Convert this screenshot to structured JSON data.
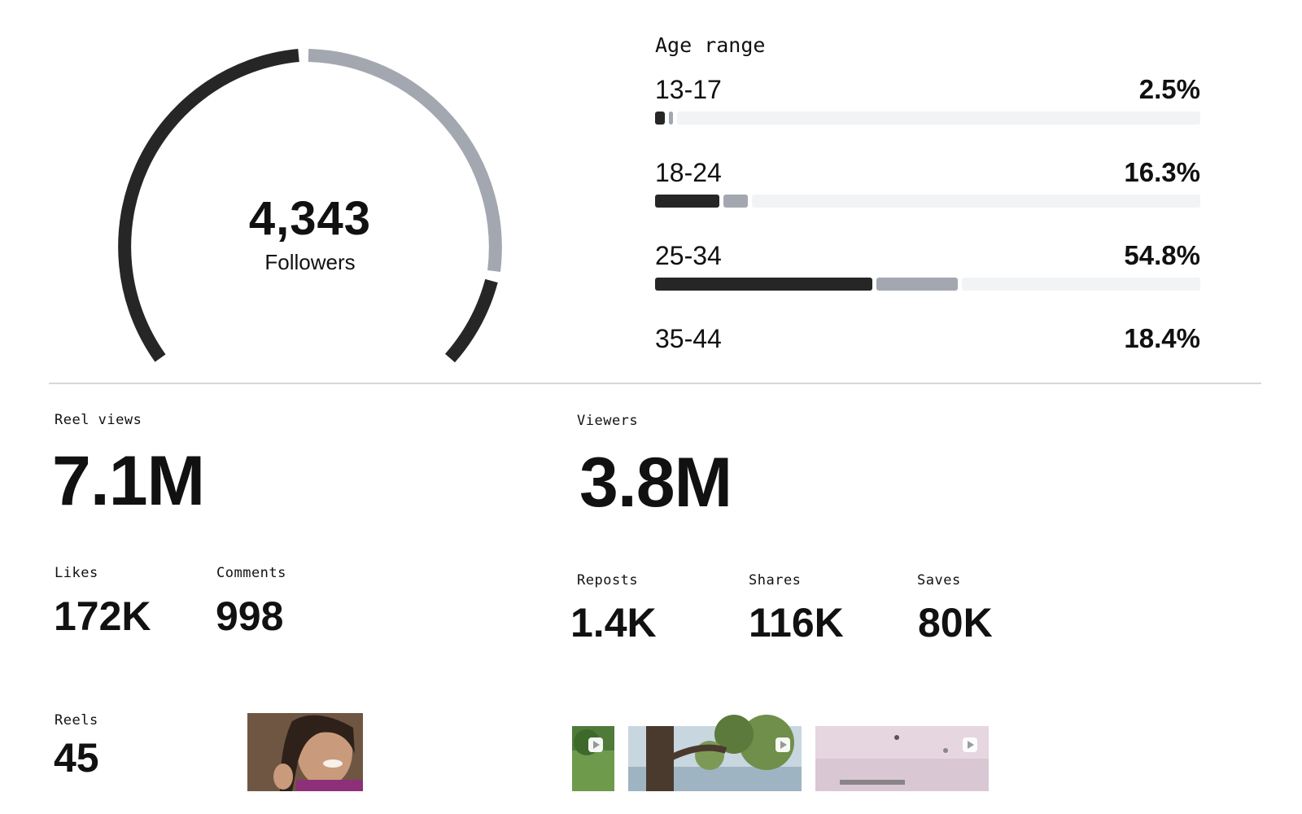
{
  "followers": {
    "count": "4,343",
    "label": "Followers",
    "ring_colors": {
      "dark": "#262626",
      "grey": "#a3a7b0"
    }
  },
  "age_range": {
    "title": "Age range",
    "rows": [
      {
        "label": "13-17",
        "value": "2.5%",
        "dark_fraction": 0.018,
        "grey_fraction": 0.007
      },
      {
        "label": "18-24",
        "value": "16.3%",
        "dark_fraction": 0.118,
        "grey_fraction": 0.045
      },
      {
        "label": "25-34",
        "value": "54.8%",
        "dark_fraction": 0.398,
        "grey_fraction": 0.15
      },
      {
        "label": "35-44",
        "value": "18.4%"
      }
    ]
  },
  "metrics": {
    "reel_views": {
      "label": "Reel views",
      "value": "7.1M"
    },
    "viewers": {
      "label": "Viewers",
      "value": "3.8M"
    },
    "likes": {
      "label": "Likes",
      "value": "172K"
    },
    "comments": {
      "label": "Comments",
      "value": "998"
    },
    "reposts": {
      "label": "Reposts",
      "value": "1.4K"
    },
    "shares": {
      "label": "Shares",
      "value": "116K"
    },
    "saves": {
      "label": "Saves",
      "value": "80K"
    },
    "reels": {
      "label": "Reels",
      "value": "45"
    }
  },
  "thumbnails": [
    {
      "name": "portrait-thumbnail",
      "kind": "image"
    },
    {
      "name": "reel-thumbnail-green",
      "kind": "video",
      "icon": "play-icon"
    },
    {
      "name": "reel-thumbnail-tree",
      "kind": "video",
      "icon": "play-icon"
    },
    {
      "name": "reel-thumbnail-room",
      "kind": "video",
      "icon": "play-icon"
    }
  ]
}
